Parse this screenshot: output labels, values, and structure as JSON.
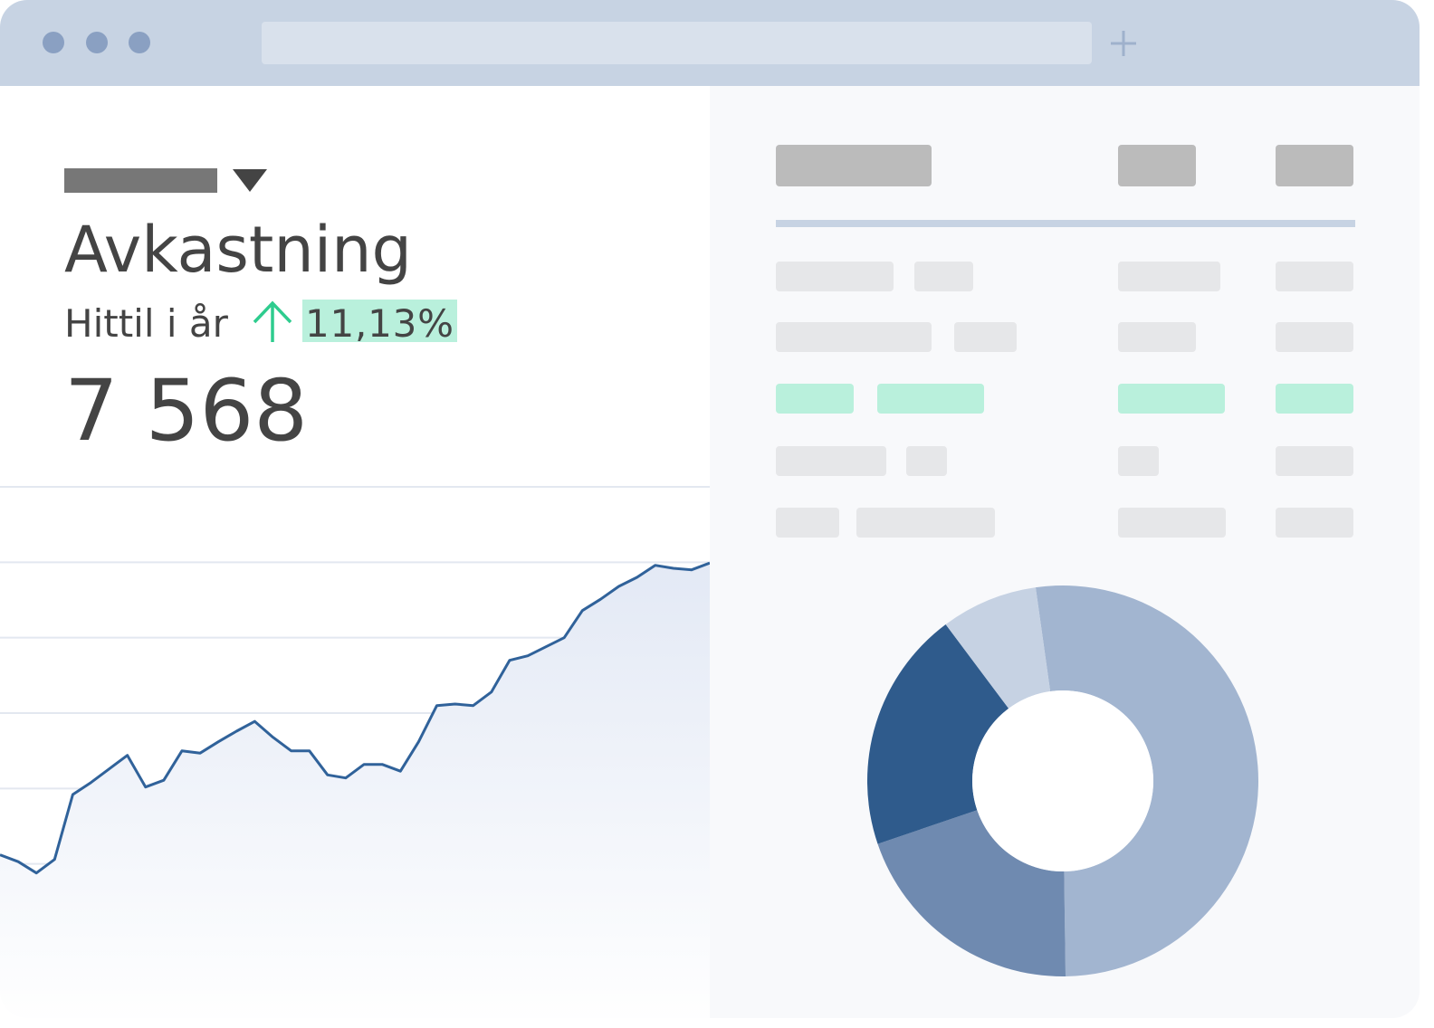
{
  "header": {
    "title": "Avkastning",
    "period": "Hittil i år",
    "change": "11,13%",
    "amount": "7 568"
  },
  "chart_data": [
    {
      "type": "line",
      "color": "#30629a",
      "values": [
        1.12,
        1.03,
        0.88,
        1.06,
        1.92,
        2.08,
        2.26,
        2.44,
        2.02,
        2.11,
        2.5,
        2.47,
        2.62,
        2.76,
        2.89,
        2.68,
        2.5,
        2.5,
        2.18,
        2.14,
        2.32,
        2.32,
        2.23,
        2.62,
        3.1,
        3.12,
        3.1,
        3.28,
        3.7,
        3.76,
        3.88,
        4.0,
        4.36,
        4.51,
        4.68,
        4.8,
        4.96,
        4.92,
        4.9,
        4.99
      ],
      "ylim": [
        0,
        6
      ],
      "yticks": [
        0,
        1,
        2,
        3,
        4,
        5,
        6
      ],
      "grid": true
    },
    {
      "type": "donut",
      "values": [
        52,
        20,
        20,
        8
      ],
      "colors": [
        "#a2b5d0",
        "#6f8ab0",
        "#2f5b8c",
        "#c6d2e3"
      ]
    }
  ]
}
